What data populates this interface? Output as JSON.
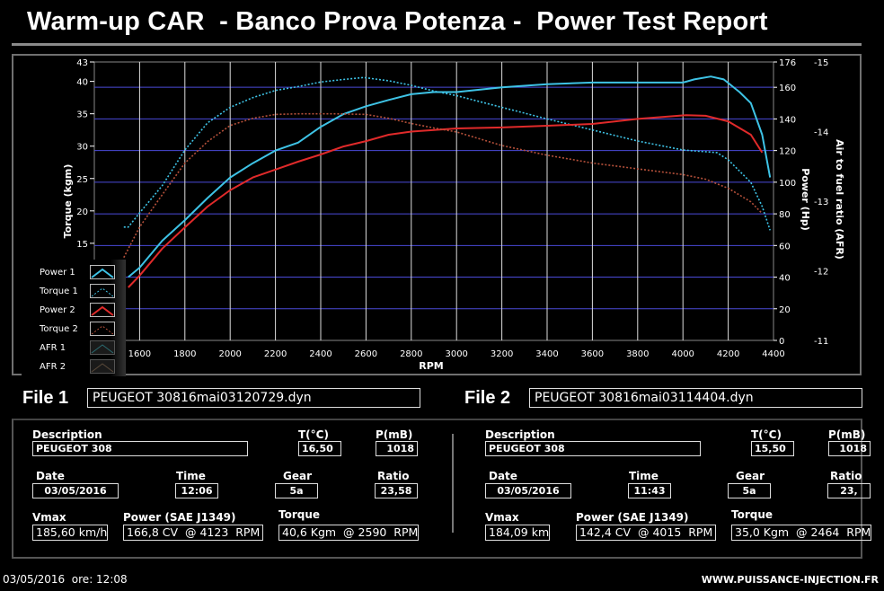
{
  "header": {
    "title": "Warm-up CAR  - Banco Prova Potenza -  Power Test Report"
  },
  "chart_data": {
    "type": "line",
    "xlabel": "RPM",
    "ylabel_left": "Torque (kgm)",
    "ylabel_right": "Power (Hp)",
    "ylabel_right2": "Air to fuel ratio (AFR)",
    "xlim": [
      1400,
      4400
    ],
    "ylim_left": [
      0,
      43
    ],
    "ylim_right": [
      0,
      176
    ],
    "ylim_right2": [
      11,
      15
    ],
    "x_ticks": [
      1600,
      1800,
      2000,
      2200,
      2400,
      2600,
      2800,
      3000,
      3200,
      3400,
      3600,
      3800,
      4000,
      4200,
      4400
    ],
    "left_ticks": [
      15,
      20,
      25,
      30,
      35,
      40,
      43
    ],
    "right_ticks": [
      0,
      20,
      40,
      60,
      80,
      100,
      120,
      140,
      160,
      176
    ],
    "right2_ticks": [
      11,
      12,
      13,
      14,
      15
    ],
    "grid": true,
    "legend_position": "bottom-left",
    "series": [
      {
        "name": "Power 1",
        "axis": "power",
        "style": "solid",
        "color": "#3ec3e6",
        "x": [
          1550,
          1600,
          1700,
          1800,
          1900,
          2000,
          2100,
          2200,
          2300,
          2400,
          2500,
          2600,
          2700,
          2800,
          2900,
          3000,
          3200,
          3400,
          3600,
          3800,
          4000,
          4050,
          4123,
          4180,
          4250,
          4300,
          4350,
          4385
        ],
        "y": [
          40,
          46,
          63,
          76,
          90,
          103,
          112,
          120,
          125,
          135,
          143,
          148,
          152,
          155.6,
          157,
          157,
          160,
          162,
          163,
          163,
          163,
          165,
          166.8,
          165,
          157,
          150,
          130,
          103
        ]
      },
      {
        "name": "Torque 1",
        "axis": "torque",
        "style": "dotted",
        "color": "#3ec3e6",
        "x": [
          1530,
          1550,
          1600,
          1700,
          1800,
          1900,
          2000,
          2100,
          2200,
          2300,
          2400,
          2500,
          2590,
          2700,
          2800,
          2900,
          3000,
          3200,
          3400,
          3600,
          3800,
          4000,
          4150,
          4200,
          4300,
          4350,
          4385
        ],
        "y": [
          17.5,
          17.5,
          19.7,
          23.9,
          29.4,
          33.6,
          36,
          37.5,
          38.6,
          39.2,
          39.9,
          40.3,
          40.6,
          40.1,
          39.4,
          38.5,
          37.8,
          36,
          34.2,
          32.5,
          30.8,
          29.4,
          29,
          27.9,
          24.4,
          20.7,
          17
        ]
      },
      {
        "name": "Power 2",
        "axis": "power",
        "style": "solid",
        "color": "#e02a2a",
        "x": [
          1550,
          1600,
          1700,
          1800,
          1900,
          2000,
          2100,
          2200,
          2300,
          2400,
          2500,
          2600,
          2700,
          2800,
          2900,
          3000,
          3200,
          3400,
          3600,
          3800,
          4015,
          4100,
          4200,
          4300,
          4350
        ],
        "y": [
          33.5,
          41,
          58,
          71.5,
          84.6,
          95,
          103,
          108,
          113,
          117.5,
          122.6,
          126,
          130,
          132,
          133,
          134,
          134.6,
          135.7,
          136.8,
          140,
          142.4,
          142,
          138.5,
          130,
          118.7
        ]
      },
      {
        "name": "Torque 2",
        "axis": "torque",
        "style": "dotted",
        "color": "#b5503a",
        "x": [
          1530,
          1600,
          1700,
          1800,
          1900,
          2000,
          2100,
          2200,
          2300,
          2464,
          2600,
          2700,
          2800,
          2900,
          3000,
          3200,
          3400,
          3600,
          3800,
          4000,
          4100,
          4200,
          4300,
          4350
        ],
        "y": [
          12.8,
          17.5,
          22.5,
          27.4,
          30.7,
          33.2,
          34.3,
          34.9,
          35,
          35,
          34.9,
          34.3,
          33.5,
          32.8,
          32.2,
          30.1,
          28.6,
          27.4,
          26.5,
          25.6,
          24.9,
          23.5,
          21.4,
          19.6
        ]
      },
      {
        "name": "AFR 1",
        "axis": "afr",
        "style": "solid",
        "color": "#2a6b70",
        "x": [],
        "y": []
      },
      {
        "name": "AFR 2",
        "axis": "afr",
        "style": "solid",
        "color": "#5a4a3a",
        "x": [],
        "y": []
      }
    ]
  },
  "files": [
    {
      "label": "File 1",
      "filename": "PEUGEOT 30816mai03120729.dyn",
      "description_label": "Description",
      "description": "PEUGEOT 308",
      "temp_label": "T(°C)",
      "temp": "16,50",
      "pressure_label": "P(mB)",
      "pressure": "1018",
      "date_label": "Date",
      "date": "03/05/2016",
      "time_label": "Time",
      "time": "12:06",
      "gear_label": "Gear",
      "gear": "5a",
      "ratio_label": "Ratio",
      "ratio": "23,58",
      "vmax_label": "Vmax",
      "vmax": "185,60 km/h",
      "power_label": "Power (SAE J1349)",
      "power": "166,8 CV  @ 4123  RPM",
      "torque_label": "Torque",
      "torque": "40,6 Kgm  @ 2590  RPM"
    },
    {
      "label": "File 2",
      "filename": "PEUGEOT 30816mai03114404.dyn",
      "description_label": "Description",
      "description": "PEUGEOT 308",
      "temp_label": "T(°C)",
      "temp": "15,50",
      "pressure_label": "P(mB)",
      "pressure": "1018",
      "date_label": "Date",
      "date": "03/05/2016",
      "time_label": "Time",
      "time": "11:43",
      "gear_label": "Gear",
      "gear": "5a",
      "ratio_label": "Ratio",
      "ratio": "23,",
      "vmax_label": "Vmax",
      "vmax": "184,09 km/",
      "power_label": "Power (SAE J1349)",
      "power": "142,4 CV  @ 4015  RPM",
      "torque_label": "Torque",
      "torque": "35,0 Kgm  @ 2464  RPM"
    }
  ],
  "footer": {
    "datetime": "03/05/2016  ore: 12:08",
    "website": "WWW.PUISSANCE-INJECTION.FR"
  }
}
